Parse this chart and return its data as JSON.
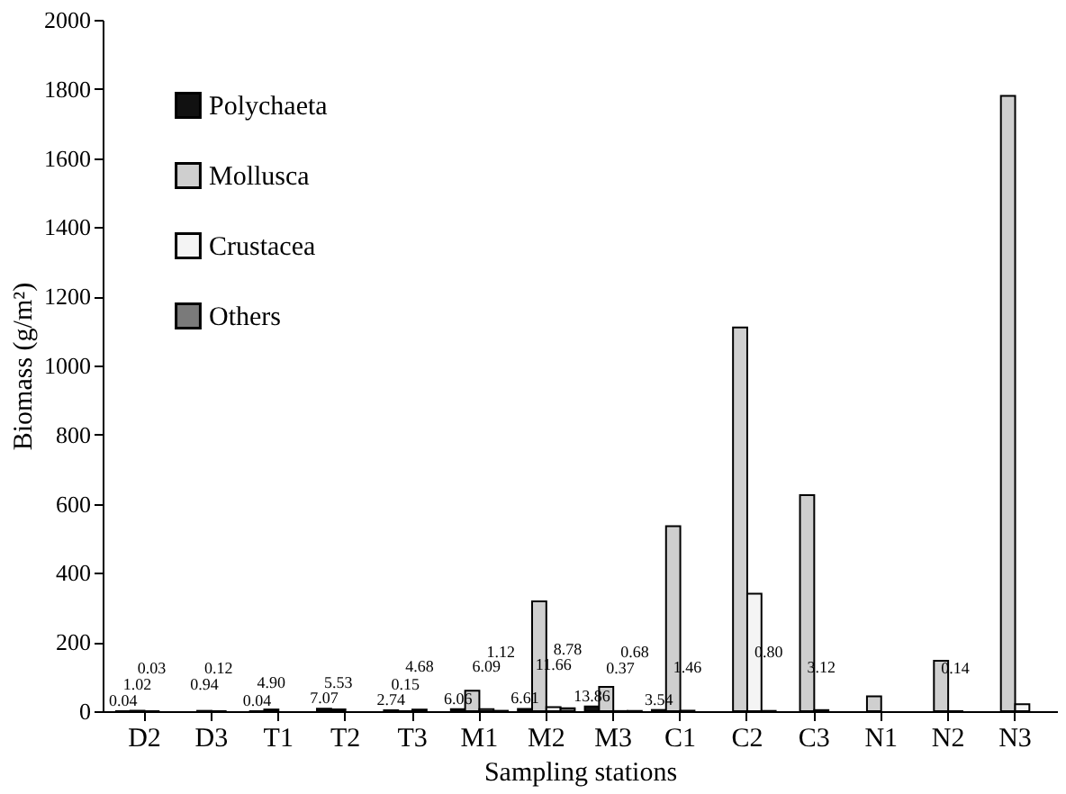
{
  "chart_data": {
    "type": "bar",
    "xlabel": "Sampling stations",
    "ylabel": "Biomass (g/m²)",
    "categories": [
      "D2",
      "D3",
      "T1",
      "T2",
      "T3",
      "M1",
      "M2",
      "M3",
      "C1",
      "C2",
      "C3",
      "N1",
      "N2",
      "N3"
    ],
    "series": [
      {
        "name": "Polychaeta",
        "color": "#111111",
        "values": [
          0.04,
          null,
          0.04,
          7.07,
          2.74,
          6.06,
          6.61,
          13.86,
          3.54,
          null,
          null,
          null,
          null,
          null
        ],
        "value_labels": [
          "0.04",
          null,
          "0.04",
          "7.07",
          "2.74",
          "6.06",
          "6.61",
          "13.86",
          "3.54",
          null,
          null,
          null,
          null,
          null
        ]
      },
      {
        "name": "Mollusca",
        "color": "#cfcfcf",
        "values": [
          1.02,
          0.94,
          4.9,
          5.53,
          0.15,
          59,
          318,
          70,
          535,
          1110,
          625,
          43,
          146,
          1780
        ],
        "value_labels": [
          "1.02",
          "0.94",
          "4.90",
          "5.53",
          "0.15",
          null,
          null,
          null,
          null,
          null,
          null,
          null,
          null,
          null
        ]
      },
      {
        "name": "Crustacea",
        "color": "#f4f4f4",
        "values": [
          0.03,
          0.12,
          null,
          null,
          4.68,
          6.09,
          11.66,
          0.37,
          1.46,
          340,
          3.12,
          null,
          0.14,
          20
        ],
        "value_labels": [
          "0.03",
          "0.12",
          null,
          null,
          "4.68",
          "6.09",
          "11.66",
          "0.37",
          "1.46",
          null,
          "3.12",
          null,
          "0.14",
          null
        ]
      },
      {
        "name": "Others",
        "color": "#7a7a7a",
        "values": [
          null,
          null,
          null,
          null,
          null,
          1.12,
          8.78,
          0.68,
          null,
          0.8,
          null,
          null,
          null,
          null
        ],
        "value_labels": [
          null,
          null,
          null,
          null,
          null,
          "1.12",
          "8.78",
          "0.68",
          null,
          "0.80",
          null,
          null,
          null,
          null
        ]
      }
    ],
    "ylim": [
      0,
      2000
    ],
    "yticks": [
      0,
      200,
      400,
      600,
      800,
      1000,
      1200,
      1400,
      1600,
      1800,
      2000
    ],
    "grid": false,
    "legend": "top left"
  }
}
